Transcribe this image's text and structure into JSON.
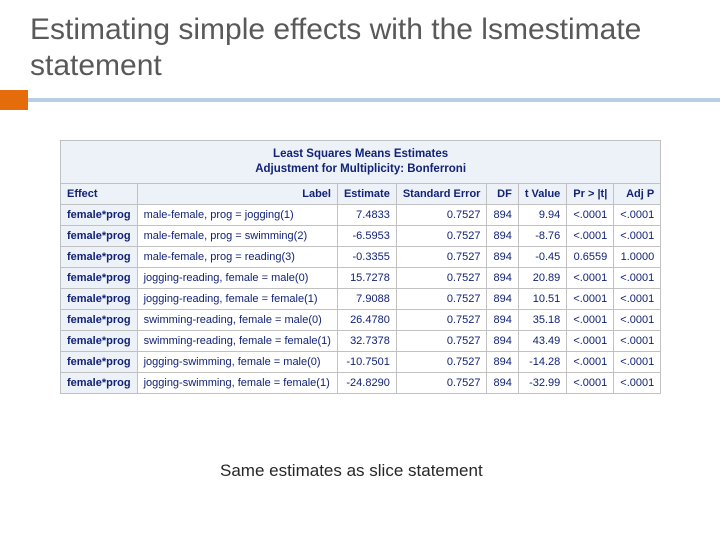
{
  "title": "Estimating simple effects with the lsmestimate statement",
  "footnote": "Same estimates as slice statement",
  "table": {
    "caption_line1": "Least Squares Means Estimates",
    "caption_line2": "Adjustment for Multiplicity: Bonferroni",
    "caption_bg": "#edf2f9",
    "header_bg": "#edf2f9",
    "text_color": "#112277",
    "border_color": "#c1c1c1",
    "columns": [
      "Effect",
      "Label",
      "Estimate",
      "Standard Error",
      "DF",
      "t Value",
      "Pr > |t|",
      "Adj P"
    ],
    "rows": [
      {
        "effect": "female*prog",
        "label": "male-female, prog = jogging(1)",
        "estimate": "7.4833",
        "stderr": "0.7527",
        "df": "894",
        "tval": "9.94",
        "p": "<.0001",
        "adjp": "<.0001"
      },
      {
        "effect": "female*prog",
        "label": "male-female, prog = swimming(2)",
        "estimate": "-6.5953",
        "stderr": "0.7527",
        "df": "894",
        "tval": "-8.76",
        "p": "<.0001",
        "adjp": "<.0001"
      },
      {
        "effect": "female*prog",
        "label": "male-female, prog = reading(3)",
        "estimate": "-0.3355",
        "stderr": "0.7527",
        "df": "894",
        "tval": "-0.45",
        "p": "0.6559",
        "adjp": "1.0000"
      },
      {
        "effect": "female*prog",
        "label": "jogging-reading, female = male(0)",
        "estimate": "15.7278",
        "stderr": "0.7527",
        "df": "894",
        "tval": "20.89",
        "p": "<.0001",
        "adjp": "<.0001"
      },
      {
        "effect": "female*prog",
        "label": "jogging-reading, female = female(1)",
        "estimate": "7.9088",
        "stderr": "0.7527",
        "df": "894",
        "tval": "10.51",
        "p": "<.0001",
        "adjp": "<.0001"
      },
      {
        "effect": "female*prog",
        "label": "swimming-reading, female = male(0)",
        "estimate": "26.4780",
        "stderr": "0.7527",
        "df": "894",
        "tval": "35.18",
        "p": "<.0001",
        "adjp": "<.0001"
      },
      {
        "effect": "female*prog",
        "label": "swimming-reading, female = female(1)",
        "estimate": "32.7378",
        "stderr": "0.7527",
        "df": "894",
        "tval": "43.49",
        "p": "<.0001",
        "adjp": "<.0001"
      },
      {
        "effect": "female*prog",
        "label": "jogging-swimming, female = male(0)",
        "estimate": "-10.7501",
        "stderr": "0.7527",
        "df": "894",
        "tval": "-14.28",
        "p": "<.0001",
        "adjp": "<.0001"
      },
      {
        "effect": "female*prog",
        "label": "jogging-swimming, female = female(1)",
        "estimate": "-24.8290",
        "stderr": "0.7527",
        "df": "894",
        "tval": "-32.99",
        "p": "<.0001",
        "adjp": "<.0001"
      }
    ]
  },
  "accent": {
    "box_color": "#e46c0a",
    "line_color": "#b9cde5"
  }
}
